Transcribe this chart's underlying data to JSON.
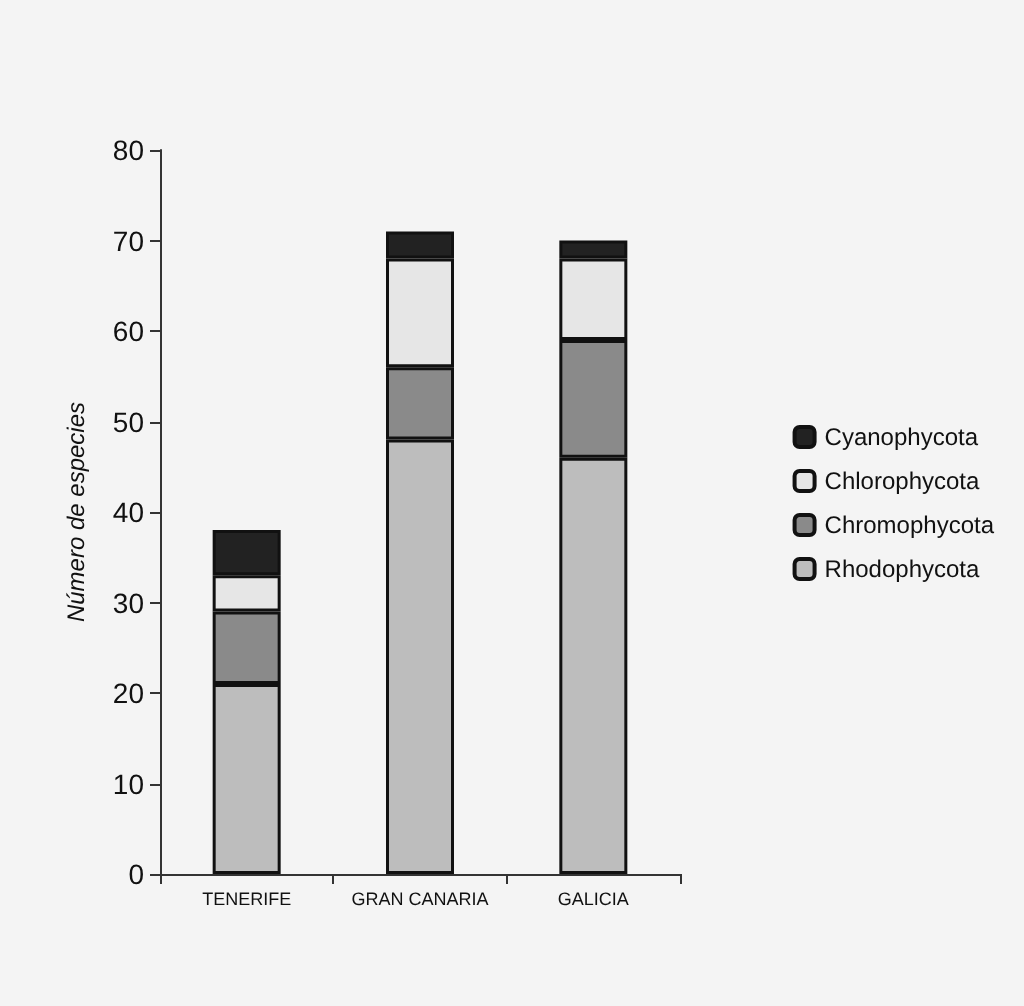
{
  "chart_data": {
    "type": "bar",
    "stacked": true,
    "ylabel": "Número de especies",
    "categories": [
      "TENERIFE",
      "GRAN CANARIA",
      "GALICIA"
    ],
    "series": [
      {
        "name": "Rhodophycota",
        "color": "#bdbdbd",
        "values": [
          21,
          48,
          46
        ]
      },
      {
        "name": "Chromophycota",
        "color": "#8a8a8a",
        "values": [
          8,
          8,
          13
        ]
      },
      {
        "name": "Chlorophycota",
        "color": "#e6e6e6",
        "values": [
          4,
          12,
          9
        ]
      },
      {
        "name": "Cyanophycota",
        "color": "#222222",
        "values": [
          5,
          3,
          2
        ]
      }
    ],
    "ylim": [
      0,
      80
    ],
    "yticks": [
      0,
      10,
      20,
      30,
      40,
      50,
      60,
      70,
      80
    ],
    "grid": false,
    "legend": "right"
  }
}
